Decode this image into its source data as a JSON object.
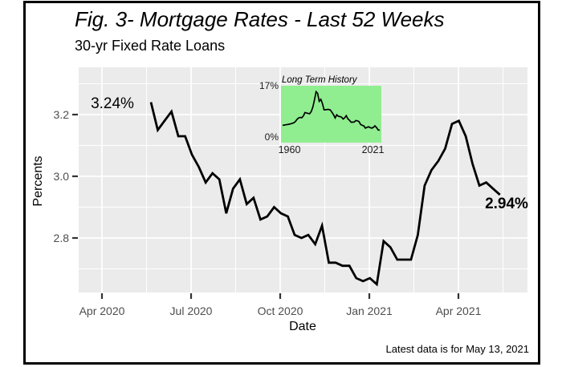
{
  "figure": {
    "title": "Fig. 3- Mortgage Rates - Last 52 Weeks",
    "subtitle": "30-yr Fixed Rate Loans",
    "caption": "Latest data is for May 13, 2021",
    "start_annotation": "3.24%",
    "end_annotation": "2.94%"
  },
  "axes": {
    "x_label": "Date",
    "y_label": "Percents",
    "x_tick_labels": [
      "Apr 2020",
      "Jul 2020",
      "Oct 2020",
      "Jan 2021",
      "Apr 2021"
    ],
    "y_tick_labels": [
      "3.2",
      "3.0",
      "2.8"
    ]
  },
  "inset_labels": {
    "title": "Long Term History",
    "y_max": "17%",
    "y_min": "0%",
    "x_min": "1960",
    "x_max": "2021"
  },
  "colors": {
    "panel_bg": "#EBEBEB",
    "gridline": "#FFFFFF",
    "series_line": "#000000",
    "inset_bg": "#90EE90",
    "tick_text": "#4D4D4D",
    "tick_mark": "#333333",
    "frame_border": "#000000"
  },
  "chart_data": [
    {
      "type": "line",
      "title": "Fig. 3- Mortgage Rates - Last 52 Weeks",
      "subtitle": "30-yr Fixed Rate Loans",
      "xlabel": "Date",
      "ylabel": "Percents",
      "frequency": "weekly",
      "start_date": "2020-05-21",
      "end_date": "2021-05-13",
      "x_tick_labels": [
        "Apr 2020",
        "Jul 2020",
        "Oct 2020",
        "Jan 2021",
        "Apr 2021"
      ],
      "y_tick_values": [
        3.2,
        3.0,
        2.8
      ],
      "ylim": [
        2.62,
        3.35
      ],
      "grid": true,
      "annotations": [
        {
          "text": "3.24%",
          "anchor": "first point",
          "value": 3.24
        },
        {
          "text": "2.94%",
          "anchor": "last point",
          "value": 2.94
        }
      ],
      "values": [
        3.24,
        3.15,
        3.18,
        3.21,
        3.13,
        3.13,
        3.07,
        3.03,
        2.98,
        3.01,
        2.99,
        2.88,
        2.96,
        2.99,
        2.91,
        2.93,
        2.86,
        2.87,
        2.9,
        2.88,
        2.87,
        2.81,
        2.8,
        2.81,
        2.78,
        2.84,
        2.72,
        2.72,
        2.71,
        2.71,
        2.67,
        2.66,
        2.67,
        2.65,
        2.79,
        2.77,
        2.73,
        2.73,
        2.73,
        2.81,
        2.97,
        3.02,
        3.05,
        3.09,
        3.17,
        3.18,
        3.13,
        3.04,
        2.97,
        2.98,
        2.96,
        2.94
      ]
    },
    {
      "type": "line",
      "title": "Long Term History",
      "x_start_year": 1960,
      "x_end_year": 2021,
      "x_tick_labels": [
        "1960",
        "2021"
      ],
      "y_tick_labels": [
        "0%",
        "17%"
      ],
      "ylim": [
        0,
        17
      ],
      "grid": false,
      "values": [
        4.7,
        4.8,
        4.9,
        5.0,
        5.1,
        5.2,
        5.4,
        5.6,
        6.0,
        6.8,
        7.3,
        7.5,
        7.4,
        8.0,
        9.2,
        9.1,
        8.9,
        8.8,
        9.6,
        11.2,
        13.7,
        16.6,
        16.0,
        13.2,
        13.9,
        12.4,
        10.2,
        10.2,
        10.3,
        10.3,
        10.1,
        9.3,
        8.4,
        7.3,
        8.4,
        7.9,
        7.8,
        7.6,
        6.9,
        7.4,
        8.1,
        7.0,
        6.5,
        5.8,
        5.8,
        5.9,
        6.4,
        6.3,
        6.0,
        5.0,
        4.7,
        4.5,
        3.7,
        4.0,
        4.2,
        3.9,
        3.7,
        4.0,
        4.5,
        3.9,
        3.1,
        2.96
      ]
    }
  ]
}
